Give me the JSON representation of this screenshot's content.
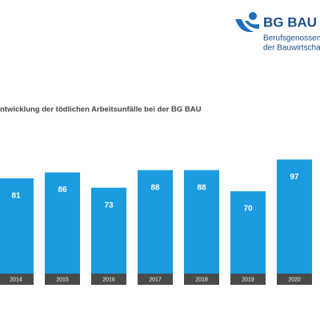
{
  "logo": {
    "name": "BG BAU",
    "line1": "Berufsgenossens",
    "line2": "der Bauwirtschaft"
  },
  "chart_data": {
    "type": "bar",
    "title": "ntwicklung der tödlichen Arbeitsunfälle bei der BG BAU",
    "categories": [
      "2014",
      "2015",
      "2016",
      "2017",
      "2018",
      "2019",
      "2020"
    ],
    "values": [
      81,
      86,
      73,
      88,
      88,
      70,
      97
    ],
    "color": "#1b9be0"
  }
}
